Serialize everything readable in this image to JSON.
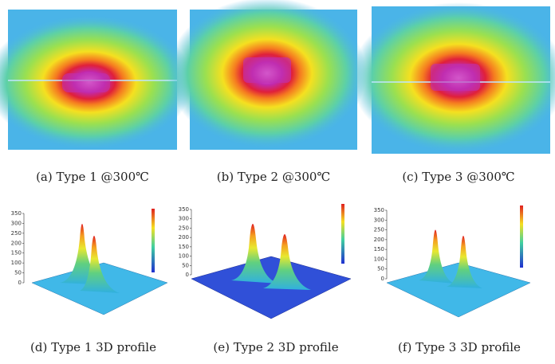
{
  "panels": [
    {
      "caption": "(a) Type 1 @300℃"
    },
    {
      "caption": "(b) Type 2 @300℃"
    },
    {
      "caption": "(c) Type 3 @300℃"
    },
    {
      "caption": "(d) Type 1 3D profile",
      "yticks": [
        350,
        300,
        250,
        200,
        150,
        100,
        50,
        0
      ]
    },
    {
      "caption": "(e) Type 2 3D profile",
      "yticks": [
        350,
        300,
        250,
        200,
        150,
        100,
        50,
        0
      ]
    },
    {
      "caption": "(f) Type 3 3D profile",
      "yticks": [
        350,
        300,
        250,
        200,
        150,
        100,
        50,
        0
      ]
    }
  ]
}
